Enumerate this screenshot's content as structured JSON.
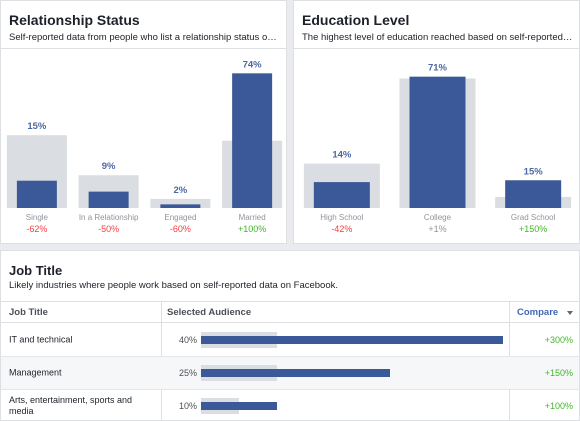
{
  "relationship": {
    "title": "Relationship Status",
    "subtitle": "Self-reported data from people who list a relationship status on Fa..."
  },
  "education": {
    "title": "Education Level",
    "subtitle": "The highest level of education reached based on self-reported dat..."
  },
  "job": {
    "title": "Job Title",
    "subtitle": "Likely industries where people work based on self-reported data on Facebook.",
    "col_title": "Job Title",
    "col_audience": "Selected Audience",
    "col_compare": "Compare"
  },
  "colors": {
    "selected": "#3b5998",
    "baseline": "#dadde1",
    "positive": "#42b72a",
    "negative": "#fa3e3e",
    "neutral": "#90949c",
    "label": "#4b68a4"
  },
  "chart_data": [
    {
      "type": "bar",
      "title": "Relationship Status",
      "categories": [
        "Single",
        "In a Relationship",
        "Engaged",
        "Married"
      ],
      "series": [
        {
          "values": [
            15,
            9,
            2,
            74
          ]
        },
        {
          "values": [
            40,
            18,
            5,
            37
          ]
        }
      ],
      "value_labels": [
        "15%",
        "9%",
        "2%",
        "74%"
      ],
      "changes": [
        "-62%",
        "-50%",
        "-60%",
        "+100%"
      ],
      "ylim": [
        0,
        80
      ]
    },
    {
      "type": "bar",
      "title": "Education Level",
      "categories": [
        "High School",
        "College",
        "Grad School"
      ],
      "series": [
        {
          "values": [
            14,
            71,
            15
          ]
        },
        {
          "values": [
            24,
            70,
            6
          ]
        }
      ],
      "value_labels": [
        "14%",
        "71%",
        "15%"
      ],
      "changes": [
        "-42%",
        "+1%",
        "+150%"
      ],
      "ylim": [
        0,
        80
      ]
    },
    {
      "type": "bar",
      "title": "Job Title",
      "categories": [
        "IT and technical",
        "Management",
        "Arts, entertainment, sports and media"
      ],
      "series": [
        {
          "values": [
            40,
            25,
            10
          ]
        },
        {
          "values": [
            10,
            10,
            5
          ]
        }
      ],
      "value_labels": [
        "40%",
        "25%",
        "10%"
      ],
      "changes": [
        "+300%",
        "+150%",
        "+100%"
      ],
      "xlim": [
        0,
        40
      ]
    }
  ]
}
